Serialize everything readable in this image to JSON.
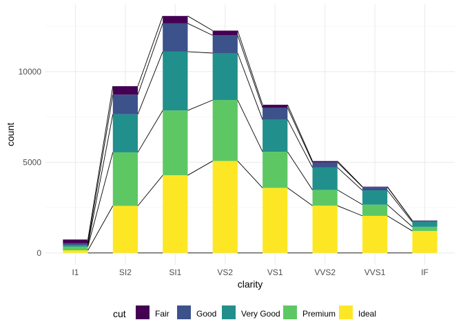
{
  "chart_data": {
    "type": "bar",
    "stacked": true,
    "title": "",
    "xlabel": "clarity",
    "ylabel": "count",
    "categories": [
      "I1",
      "SI2",
      "SI1",
      "VS2",
      "VS1",
      "VVS2",
      "VVS1",
      "IF"
    ],
    "ylim": [
      0,
      13065
    ],
    "yticks": [
      0,
      5000,
      10000
    ],
    "yticklabels": [
      "0",
      "5000",
      "10000"
    ],
    "grid": true,
    "legend": {
      "title": "cut",
      "position": "bottom"
    },
    "connecting_lines": true,
    "series": [
      {
        "name": "Fair",
        "color": "#440154",
        "values": [
          210,
          466,
          408,
          261,
          170,
          69,
          17,
          9
        ]
      },
      {
        "name": "Good",
        "color": "#3B528B",
        "values": [
          96,
          1081,
          1560,
          978,
          648,
          286,
          186,
          71
        ]
      },
      {
        "name": "Very Good",
        "color": "#21908C",
        "values": [
          84,
          2100,
          3240,
          2591,
          1775,
          1235,
          789,
          268
        ]
      },
      {
        "name": "Premium",
        "color": "#5DC863",
        "values": [
          205,
          2949,
          3575,
          3357,
          1989,
          870,
          616,
          230
        ]
      },
      {
        "name": "Ideal",
        "color": "#FDE725",
        "values": [
          146,
          2598,
          4282,
          5071,
          3589,
          2606,
          2047,
          1212
        ]
      }
    ]
  }
}
